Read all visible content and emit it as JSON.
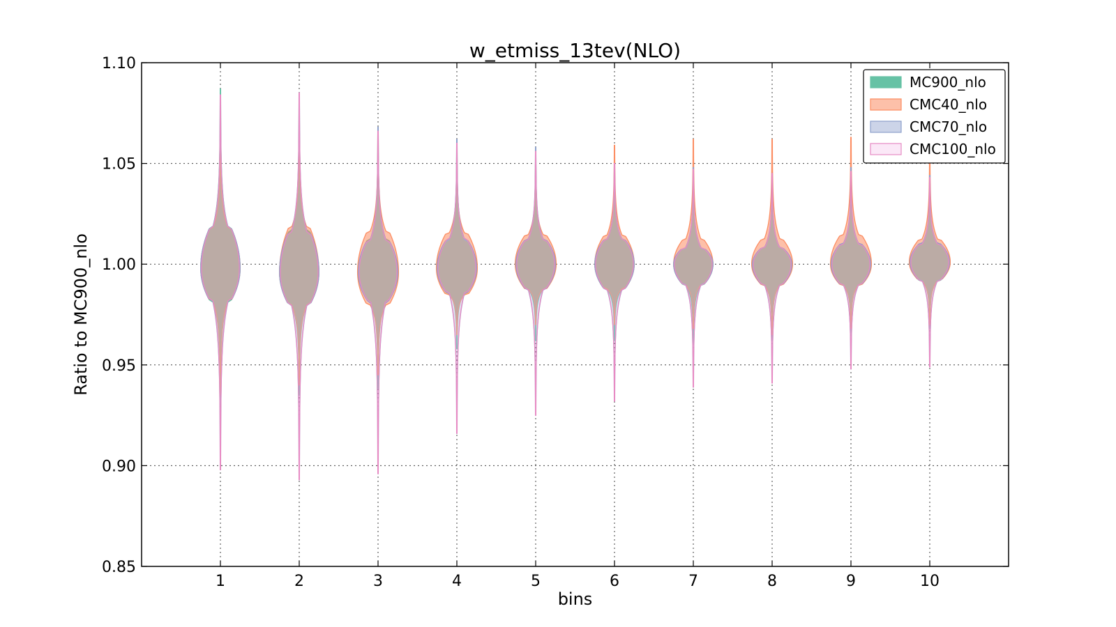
{
  "chart_data": {
    "type": "violin",
    "title": "w_etmiss_13tev(NLO)",
    "xlabel": "bins",
    "ylabel": "Ratio to MC900_nlo",
    "categories": [
      "1",
      "2",
      "3",
      "4",
      "5",
      "6",
      "7",
      "8",
      "9",
      "10"
    ],
    "xlim": [
      0,
      11
    ],
    "ylim": [
      0.85,
      1.1
    ],
    "yticks": [
      "0.85",
      "0.90",
      "0.95",
      "1.00",
      "1.05",
      "1.10"
    ],
    "grid": true,
    "legend_position": "top-right",
    "series": [
      {
        "name": "MC900_nlo",
        "fill": "#66c2a5",
        "stroke": "#66c2a5",
        "opacity": 1.0,
        "violins": [
          {
            "min": 0.93,
            "max": 1.087,
            "q1": 0.982,
            "q3": 1.018,
            "center": 0.998,
            "width": 0.5
          },
          {
            "min": 0.935,
            "max": 1.08,
            "q1": 0.98,
            "q3": 1.016,
            "center": 0.996,
            "width": 0.5
          },
          {
            "min": 0.938,
            "max": 1.066,
            "q1": 0.982,
            "q3": 1.012,
            "center": 0.996,
            "width": 0.5
          },
          {
            "min": 0.958,
            "max": 1.06,
            "q1": 0.986,
            "q3": 1.012,
            "center": 0.998,
            "width": 0.5
          },
          {
            "min": 0.962,
            "max": 1.055,
            "q1": 0.988,
            "q3": 1.012,
            "center": 1.0,
            "width": 0.5
          },
          {
            "min": 0.962,
            "max": 1.05,
            "q1": 0.988,
            "q3": 1.012,
            "center": 1.0,
            "width": 0.5
          },
          {
            "min": 0.96,
            "max": 1.046,
            "q1": 0.99,
            "q3": 1.008,
            "center": 1.0,
            "width": 0.5
          },
          {
            "min": 0.962,
            "max": 1.045,
            "q1": 0.99,
            "q3": 1.008,
            "center": 1.0,
            "width": 0.5
          },
          {
            "min": 0.965,
            "max": 1.044,
            "q1": 0.99,
            "q3": 1.01,
            "center": 1.0,
            "width": 0.5
          },
          {
            "min": 0.968,
            "max": 1.04,
            "q1": 0.992,
            "q3": 1.01,
            "center": 1.001,
            "width": 0.5
          }
        ]
      },
      {
        "name": "CMC40_nlo",
        "fill": "#fc8d62",
        "stroke": "#fc8d62",
        "opacity": 0.55,
        "violins": [
          {
            "min": 0.935,
            "max": 1.06,
            "q1": 0.982,
            "q3": 1.018,
            "center": 0.998,
            "width": 0.5
          },
          {
            "min": 0.94,
            "max": 1.066,
            "q1": 0.98,
            "q3": 1.018,
            "center": 0.996,
            "width": 0.5
          },
          {
            "min": 0.945,
            "max": 1.064,
            "q1": 0.98,
            "q3": 1.016,
            "center": 0.996,
            "width": 0.52
          },
          {
            "min": 0.965,
            "max": 1.053,
            "q1": 0.985,
            "q3": 1.015,
            "center": 0.998,
            "width": 0.52
          },
          {
            "min": 0.97,
            "max": 1.05,
            "q1": 0.988,
            "q3": 1.014,
            "center": 1.0,
            "width": 0.52
          },
          {
            "min": 0.97,
            "max": 1.059,
            "q1": 0.988,
            "q3": 1.014,
            "center": 1.0,
            "width": 0.5
          },
          {
            "min": 0.968,
            "max": 1.062,
            "q1": 0.99,
            "q3": 1.012,
            "center": 1.0,
            "width": 0.5
          },
          {
            "min": 0.965,
            "max": 1.062,
            "q1": 0.99,
            "q3": 1.012,
            "center": 1.0,
            "width": 0.52
          },
          {
            "min": 0.968,
            "max": 1.063,
            "q1": 0.99,
            "q3": 1.014,
            "center": 1.0,
            "width": 0.52
          },
          {
            "min": 0.97,
            "max": 1.055,
            "q1": 0.992,
            "q3": 1.012,
            "center": 1.001,
            "width": 0.52
          }
        ]
      },
      {
        "name": "CMC70_nlo",
        "fill": "#8da0cb",
        "stroke": "#8da0cb",
        "opacity": 0.25,
        "violins": [
          {
            "min": 0.898,
            "max": 1.084,
            "q1": 0.982,
            "q3": 1.018,
            "center": 0.998,
            "width": 0.5
          },
          {
            "min": 0.893,
            "max": 1.085,
            "q1": 0.98,
            "q3": 1.016,
            "center": 0.996,
            "width": 0.5
          },
          {
            "min": 0.896,
            "max": 1.068,
            "q1": 0.982,
            "q3": 1.012,
            "center": 0.996,
            "width": 0.5
          },
          {
            "min": 0.916,
            "max": 1.062,
            "q1": 0.986,
            "q3": 1.012,
            "center": 0.998,
            "width": 0.5
          },
          {
            "min": 0.925,
            "max": 1.058,
            "q1": 0.988,
            "q3": 1.012,
            "center": 1.0,
            "width": 0.5
          },
          {
            "min": 0.932,
            "max": 1.05,
            "q1": 0.988,
            "q3": 1.012,
            "center": 1.0,
            "width": 0.5
          },
          {
            "min": 0.939,
            "max": 1.048,
            "q1": 0.99,
            "q3": 1.008,
            "center": 1.0,
            "width": 0.5
          },
          {
            "min": 0.941,
            "max": 1.045,
            "q1": 0.99,
            "q3": 1.008,
            "center": 1.0,
            "width": 0.5
          },
          {
            "min": 0.948,
            "max": 1.048,
            "q1": 0.99,
            "q3": 1.01,
            "center": 1.0,
            "width": 0.5
          },
          {
            "min": 0.949,
            "max": 1.044,
            "q1": 0.992,
            "q3": 1.01,
            "center": 1.001,
            "width": 0.5
          }
        ]
      },
      {
        "name": "CMC100_nlo",
        "fill": "#f7cdee",
        "stroke": "#e78ac3",
        "opacity": 0.2,
        "violins": [
          {
            "min": 0.898,
            "max": 1.084,
            "q1": 0.982,
            "q3": 1.018,
            "center": 0.998,
            "width": 0.48
          },
          {
            "min": 0.893,
            "max": 1.085,
            "q1": 0.98,
            "q3": 1.016,
            "center": 0.996,
            "width": 0.48
          },
          {
            "min": 0.896,
            "max": 1.066,
            "q1": 0.982,
            "q3": 1.012,
            "center": 0.996,
            "width": 0.48
          },
          {
            "min": 0.916,
            "max": 1.06,
            "q1": 0.986,
            "q3": 1.012,
            "center": 0.998,
            "width": 0.48
          },
          {
            "min": 0.925,
            "max": 1.056,
            "q1": 0.988,
            "q3": 1.012,
            "center": 1.0,
            "width": 0.48
          },
          {
            "min": 0.932,
            "max": 1.05,
            "q1": 0.988,
            "q3": 1.012,
            "center": 1.0,
            "width": 0.48
          },
          {
            "min": 0.939,
            "max": 1.047,
            "q1": 0.99,
            "q3": 1.008,
            "center": 1.0,
            "width": 0.48
          },
          {
            "min": 0.941,
            "max": 1.045,
            "q1": 0.99,
            "q3": 1.008,
            "center": 1.0,
            "width": 0.48
          },
          {
            "min": 0.948,
            "max": 1.046,
            "q1": 0.99,
            "q3": 1.01,
            "center": 1.0,
            "width": 0.48
          },
          {
            "min": 0.949,
            "max": 1.043,
            "q1": 0.992,
            "q3": 1.01,
            "center": 1.001,
            "width": 0.48
          }
        ]
      }
    ]
  }
}
